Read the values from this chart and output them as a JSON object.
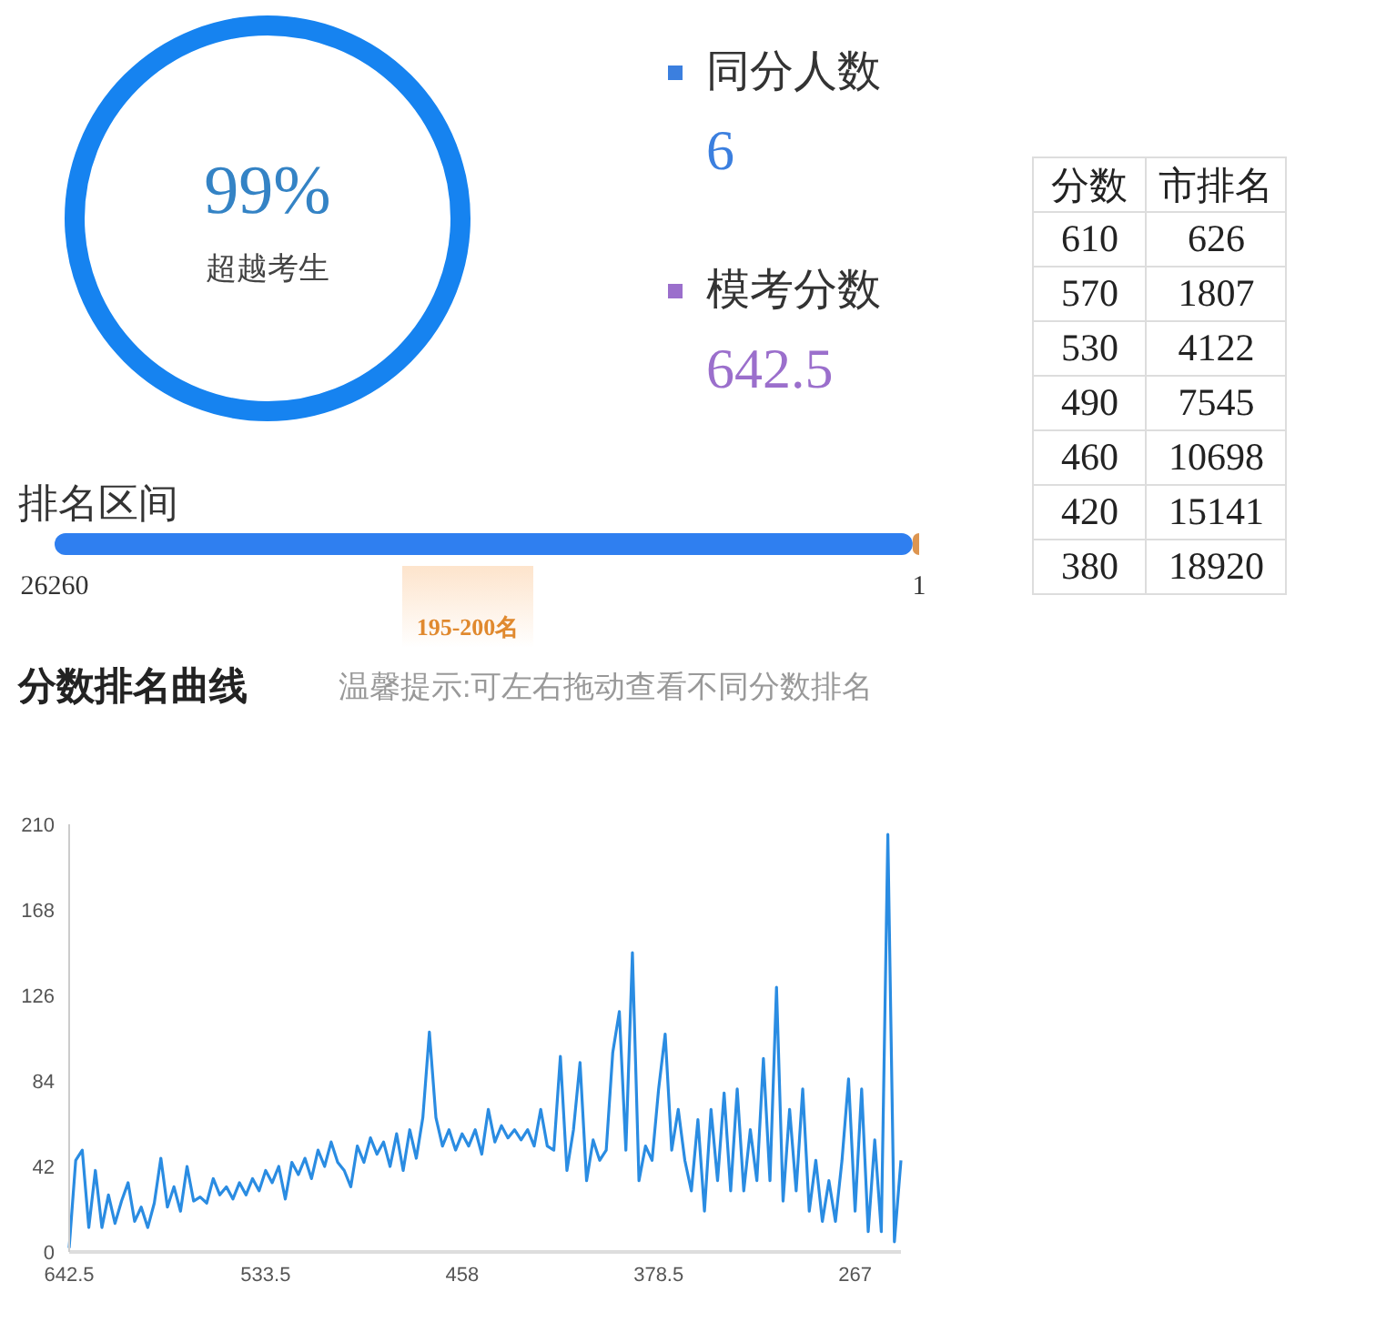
{
  "chart_data": [
    {
      "type": "other",
      "annotations": [
        "99%",
        "超越考生"
      ]
    },
    {
      "type": "other",
      "categories": [
        "同分人数",
        "模考分数"
      ],
      "values": [
        6,
        642.5
      ],
      "colors": [
        "#3b7fdf",
        "#9b6fcc"
      ],
      "data_labels": true
    },
    {
      "type": "other",
      "xlabel": "分数",
      "ylabel": "市排名",
      "categories": [
        "610",
        "570",
        "530",
        "490",
        "460",
        "420",
        "380"
      ],
      "values": [
        626,
        1807,
        4122,
        7545,
        10698,
        15141,
        18920
      ],
      "data_labels": true
    },
    {
      "type": "bar",
      "title": "排名区间",
      "orientation": "horizontal",
      "categories": [
        null
      ],
      "series": [
        {
          "color": "#dd9550",
          "values": [
            199
          ],
          "base": [
            1
          ]
        },
        {
          "color": "#2f7ff0",
          "values": [
            26060
          ],
          "base": [
            200
          ]
        }
      ],
      "xlim": [
        26260,
        1
      ],
      "xticks": [
        26260,
        1
      ],
      "annotations": [
        "195-200名"
      ]
    },
    {
      "type": "line",
      "title": "分数排名曲线",
      "subtitle": "温馨提示:可左右拖动查看不同分数排名",
      "categories": [
        "642.5",
        null,
        null,
        null,
        null,
        null,
        null,
        null,
        null,
        null,
        null,
        null,
        null,
        null,
        null,
        null,
        null,
        null,
        null,
        null,
        null,
        null,
        null,
        null,
        null,
        null,
        null,
        null,
        null,
        null,
        "533.5",
        null,
        null,
        null,
        null,
        null,
        null,
        null,
        null,
        null,
        null,
        null,
        null,
        null,
        null,
        null,
        null,
        null,
        null,
        null,
        null,
        null,
        null,
        null,
        null,
        null,
        null,
        null,
        null,
        null,
        "458",
        null,
        null,
        null,
        null,
        null,
        null,
        null,
        null,
        null,
        null,
        null,
        null,
        null,
        null,
        null,
        null,
        null,
        null,
        null,
        null,
        null,
        null,
        null,
        null,
        null,
        null,
        null,
        null,
        null,
        "378.5",
        null,
        null,
        null,
        null,
        null,
        null,
        null,
        null,
        null,
        null,
        null,
        null,
        null,
        null,
        null,
        null,
        null,
        null,
        null,
        null,
        null,
        null,
        null,
        null,
        null,
        null,
        null,
        null,
        null,
        "267",
        null,
        null,
        null,
        null,
        null,
        null,
        null
      ],
      "values": [
        2,
        45,
        50,
        12,
        40,
        12,
        28,
        14,
        25,
        34,
        15,
        22,
        12,
        24,
        46,
        22,
        32,
        20,
        42,
        25,
        27,
        24,
        36,
        28,
        32,
        26,
        34,
        28,
        36,
        30,
        40,
        34,
        42,
        26,
        44,
        38,
        46,
        36,
        50,
        42,
        54,
        44,
        40,
        32,
        52,
        44,
        56,
        48,
        54,
        42,
        58,
        40,
        60,
        46,
        66,
        108,
        66,
        52,
        60,
        50,
        58,
        52,
        60,
        48,
        70,
        54,
        62,
        56,
        60,
        55,
        60,
        52,
        70,
        52,
        50,
        96,
        40,
        60,
        93,
        35,
        55,
        45,
        50,
        98,
        118,
        50,
        147,
        35,
        52,
        45,
        80,
        107,
        50,
        70,
        45,
        30,
        65,
        20,
        70,
        35,
        78,
        30,
        80,
        30,
        60,
        35,
        95,
        35,
        130,
        25,
        70,
        30,
        80,
        20,
        45,
        15,
        35,
        15,
        45,
        85,
        20,
        80,
        10,
        55,
        10,
        205,
        5,
        45
      ],
      "color": "#2a8ce2",
      "ylim": [
        0,
        210
      ],
      "yticks": [
        0,
        42,
        84,
        126,
        168,
        210
      ]
    }
  ]
}
